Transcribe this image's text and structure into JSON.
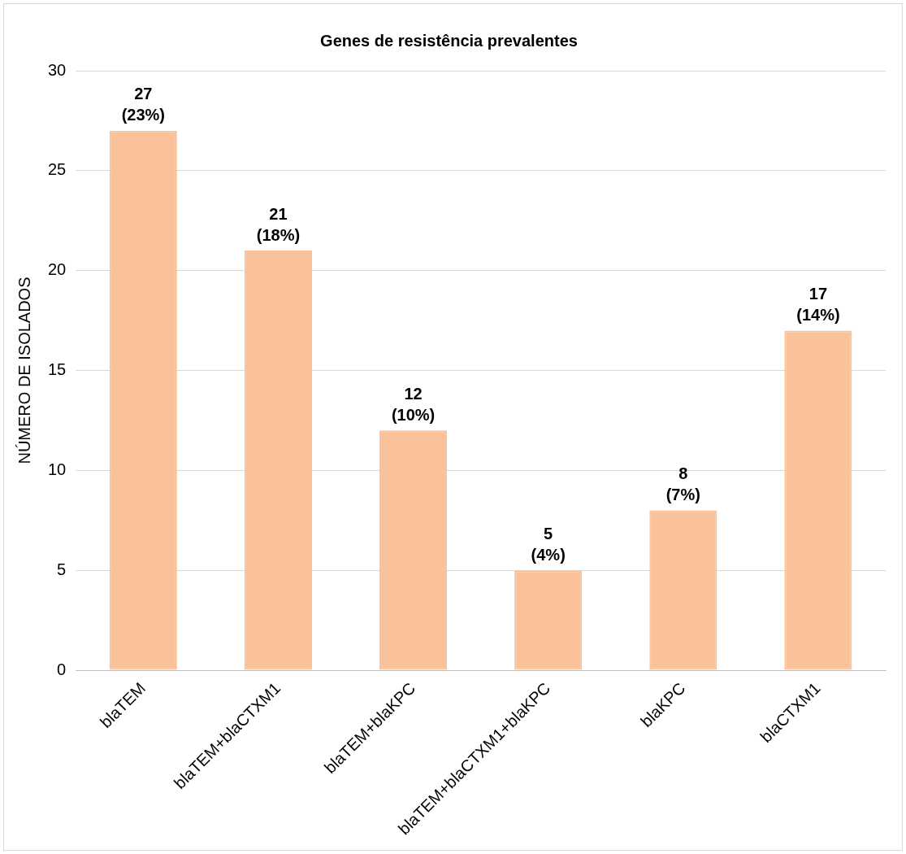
{
  "chart_data": {
    "type": "bar",
    "title": "Genes de resistência prevalentes",
    "ylabel": "NÚMERO DE ISOLADOS",
    "categories": [
      "blaTEM",
      "blaTEM+blaCTXM1",
      "blaTEM+blaKPC",
      "blaTEM+blaCTXM1+blaKPC",
      "blaKPC",
      "blaCTXM1"
    ],
    "values": [
      27,
      21,
      12,
      5,
      8,
      17
    ],
    "value_labels": [
      "27\n(23%)",
      "21\n(18%)",
      "12\n(10%)",
      "5\n(4%)",
      "8\n(7%)",
      "17\n(14%)"
    ],
    "color": "#f9c29a",
    "ylim": [
      0,
      30
    ],
    "yticks": [
      0,
      5,
      10,
      15,
      20,
      25,
      30
    ],
    "grid": "y",
    "legend": false
  }
}
